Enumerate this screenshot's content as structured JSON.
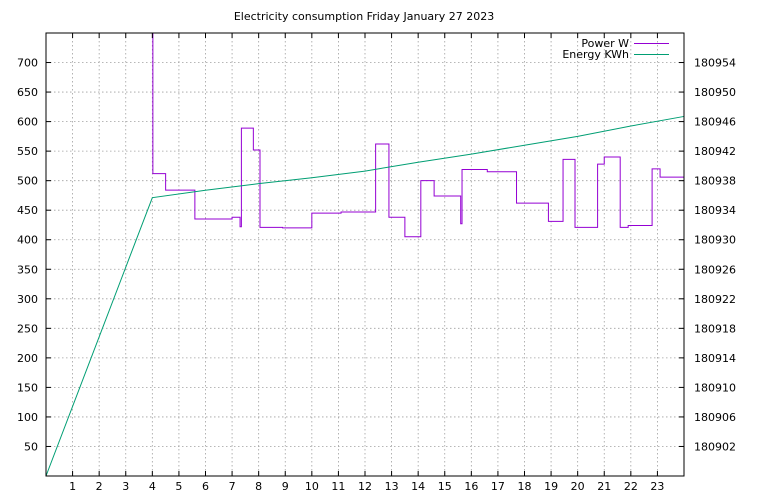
{
  "chart_data": {
    "type": "line",
    "title": "Electricity consumption Friday January 27 2023",
    "x": {
      "range": [
        0,
        24
      ],
      "ticks": [
        1,
        2,
        3,
        4,
        5,
        6,
        7,
        8,
        9,
        10,
        11,
        12,
        13,
        14,
        15,
        16,
        17,
        18,
        19,
        20,
        21,
        22,
        23
      ]
    },
    "y_left": {
      "range": [
        0,
        750
      ],
      "ticks": [
        50,
        100,
        150,
        200,
        250,
        300,
        350,
        400,
        450,
        500,
        550,
        600,
        650,
        700
      ]
    },
    "y_right": {
      "range": [
        180898,
        180958
      ],
      "ticks": [
        180902,
        180906,
        180910,
        180914,
        180918,
        180922,
        180926,
        180930,
        180934,
        180938,
        180942,
        180946,
        180950,
        180954
      ]
    },
    "grid": true,
    "legend_position": "top-right",
    "series": [
      {
        "name": "Power W",
        "axis": "left",
        "color": "#9400d3",
        "x": [
          4.0,
          4.02,
          4.02,
          4.5,
          4.5,
          5.6,
          5.6,
          7.0,
          7.0,
          7.3,
          7.3,
          7.35,
          7.35,
          7.8,
          7.8,
          8.05,
          8.05,
          8.9,
          8.9,
          10.0,
          10.0,
          11.1,
          11.1,
          12.0,
          12.0,
          12.4,
          12.4,
          12.9,
          12.9,
          13.5,
          13.5,
          14.1,
          14.1,
          14.6,
          14.6,
          15.6,
          15.6,
          15.65,
          15.65,
          16.6,
          16.6,
          17.7,
          17.7,
          18.9,
          18.9,
          19.45,
          19.45,
          19.9,
          19.9,
          20.75,
          20.75,
          21.0,
          21.0,
          21.6,
          21.6,
          21.9,
          21.9,
          22.8,
          22.8,
          23.1,
          23.1,
          24.0
        ],
        "y": [
          750,
          750,
          512,
          512,
          484,
          484,
          435,
          435,
          438,
          438,
          422,
          422,
          589,
          589,
          552,
          552,
          421,
          421,
          420,
          420,
          445,
          445,
          447,
          447,
          447,
          447,
          562,
          562,
          438,
          438,
          405,
          405,
          500,
          500,
          474,
          474,
          427,
          427,
          519,
          519,
          515,
          515,
          462,
          462,
          431,
          431,
          536,
          536,
          421,
          421,
          528,
          528,
          540,
          540,
          421,
          421,
          424,
          424,
          520,
          520,
          506,
          506
        ]
      },
      {
        "name": "Energy KWh",
        "axis": "right",
        "color": "#009e73",
        "x": [
          0,
          4.0,
          6.0,
          8.0,
          10.0,
          12.0,
          14.0,
          16.0,
          18.0,
          20.0,
          22.0,
          24.0
        ],
        "y": [
          180898.0,
          180935.7,
          180936.7,
          180937.6,
          180938.4,
          180939.3,
          180940.5,
          180941.6,
          180942.8,
          180944.0,
          180945.4,
          180946.7
        ]
      }
    ]
  }
}
